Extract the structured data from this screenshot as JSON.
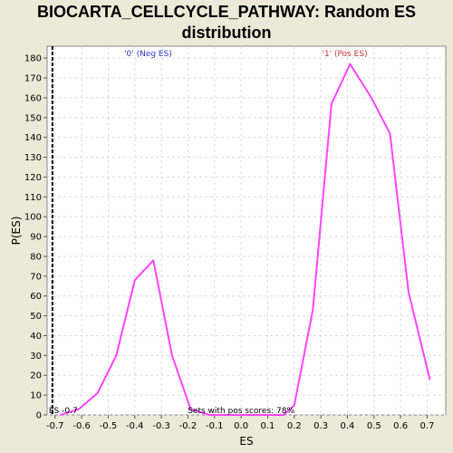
{
  "chart_data": {
    "type": "line",
    "title": "BIOCARTA_CELLCYCLE_PATHWAY: Random ES distribution",
    "xlabel": "ES",
    "ylabel": "P(ES)",
    "xlim": [
      -0.73,
      0.77
    ],
    "ylim": [
      0,
      186
    ],
    "x_ticks": [
      -0.7,
      -0.6,
      -0.5,
      -0.4,
      -0.3,
      -0.2,
      -0.1,
      0.0,
      0.1,
      0.2,
      0.3,
      0.4,
      0.5,
      0.6,
      0.7
    ],
    "y_ticks": [
      0,
      10,
      20,
      30,
      40,
      50,
      60,
      70,
      80,
      90,
      100,
      110,
      120,
      130,
      140,
      150,
      160,
      170,
      180
    ],
    "grid": true,
    "series": [
      {
        "color": "#ff44ff",
        "x": [
          -0.68,
          -0.61,
          -0.54,
          -0.47,
          -0.4,
          -0.33,
          -0.26,
          -0.19,
          -0.12,
          -0.05,
          0.02,
          0.09,
          0.16,
          0.2,
          0.27,
          0.34,
          0.41,
          0.49,
          0.56,
          0.63,
          0.71
        ],
        "y": [
          0,
          3,
          11,
          30,
          68,
          78,
          30,
          3,
          0,
          0,
          0,
          0,
          0,
          5,
          53,
          157,
          177,
          160,
          142,
          62,
          18
        ]
      }
    ],
    "observed_es": {
      "x": -0.71,
      "label": "ES -0.7",
      "color": "#000000"
    },
    "annotations": [
      {
        "text": "'0' (Neg ES)",
        "color": "#3333cc",
        "x": -0.35,
        "y": 181
      },
      {
        "text": "'1' (Pos ES)",
        "color": "#cc3333",
        "x": 0.39,
        "y": 181
      },
      {
        "text": "Sets with pos scores: 78%",
        "color": "#000000",
        "x": 0.0,
        "y": 1
      }
    ]
  }
}
